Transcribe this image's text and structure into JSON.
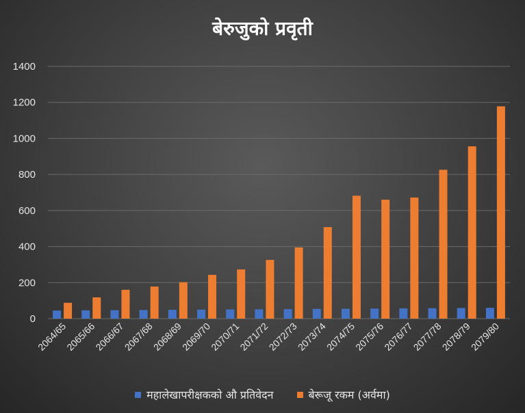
{
  "colors": {
    "series_1": "#4472c4",
    "series_2": "#ed7d31",
    "gridline": "#6b6b6b",
    "axis_text": "#e6e6e6"
  },
  "chart_data": {
    "type": "bar",
    "title": "बेरुजुको प्रवृती",
    "xlabel": "",
    "ylabel": "",
    "ylim": [
      0,
      1400
    ],
    "yticks": [
      0,
      200,
      400,
      600,
      800,
      1000,
      1200,
      1400
    ],
    "grid": true,
    "legend_position": "bottom",
    "categories": [
      "2064/65",
      "2065/66",
      "2066/67",
      "2067/68",
      "2068/69",
      "2069/70",
      "2070/71",
      "2071/72",
      "2072/73",
      "2073/74",
      "2074/75",
      "2075/76",
      "2076/77",
      "2077/78",
      "2078/79",
      "2079/80"
    ],
    "series": [
      {
        "name": "महालेखापरीक्षकको औ प्रतिवेदन",
        "values": [
          45,
          46,
          47,
          48,
          49,
          50,
          51,
          52,
          53,
          54,
          55,
          56,
          57,
          58,
          59,
          60
        ]
      },
      {
        "name": "बेरूजू रकम (अर्वमा)",
        "values": [
          88,
          118,
          160,
          178,
          202,
          243,
          273,
          326,
          395,
          508,
          682,
          660,
          672,
          826,
          956,
          1178
        ]
      }
    ]
  }
}
